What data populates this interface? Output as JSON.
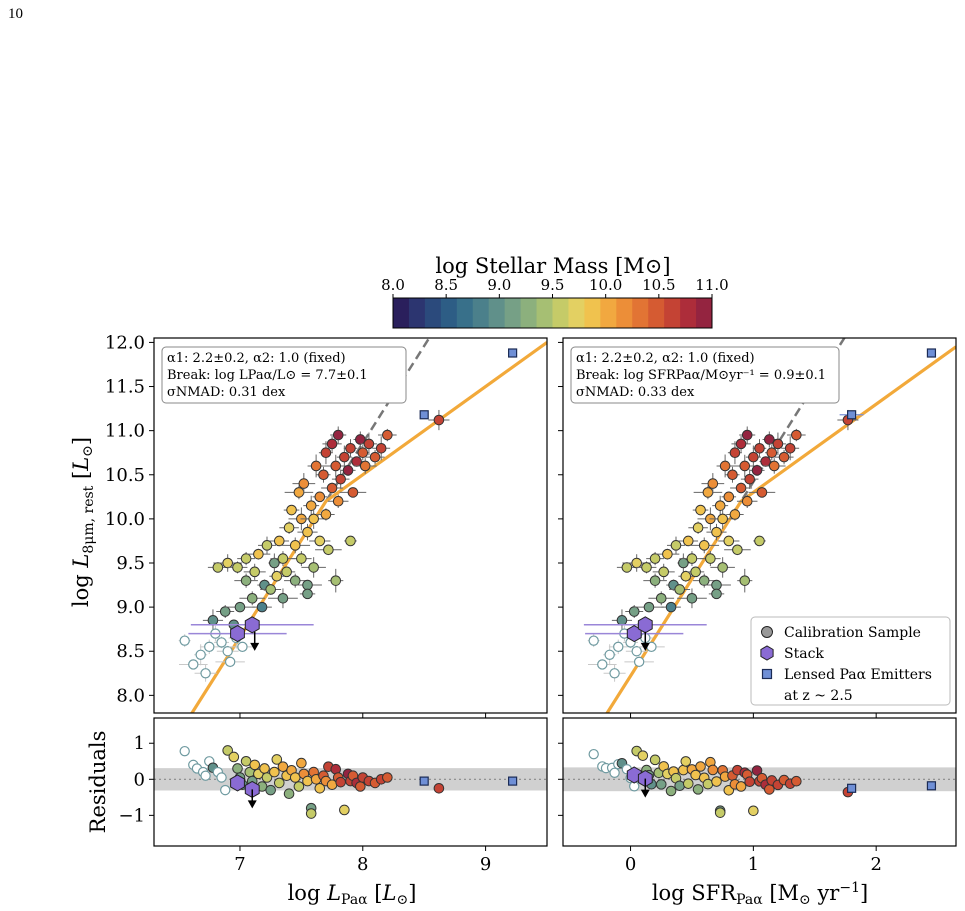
{
  "page_number": "10",
  "colorbar": {
    "label": "log Stellar Mass [M⊙]",
    "ticks": [
      "8.0",
      "8.5",
      "9.0",
      "9.5",
      "10.0",
      "10.5",
      "11.0"
    ],
    "range": [
      8.0,
      11.0
    ],
    "colors": [
      "#2a1f5c",
      "#2c3570",
      "#2b4a7c",
      "#2d5d85",
      "#38708a",
      "#4b808b",
      "#60908a",
      "#76a086",
      "#8cb07d",
      "#a6bf73",
      "#c5cb68",
      "#e3d062",
      "#f0c24e",
      "#f1a840",
      "#ec8e38",
      "#e27434",
      "#d55b32",
      "#c44334",
      "#ad2d3a",
      "#942440"
    ]
  },
  "chart_data": [
    {
      "type": "scatter",
      "panel": "top-left",
      "xlim": [
        6.3,
        9.5
      ],
      "ylim": [
        7.8,
        12.05
      ],
      "xticks": [],
      "yticks": [
        "8.0",
        "8.5",
        "9.0",
        "9.5",
        "10.0",
        "10.5",
        "11.0",
        "11.5",
        "12.0"
      ],
      "ylabel": "log L8μm, rest [L⊙]",
      "annotation": [
        "α1: 2.2±0.2, α2: 1.0 (fixed)",
        "Break: log LPaα/L⊙ = 7.7±0.1",
        "σNMAD: 0.31 dex"
      ],
      "fit": {
        "break": 7.7,
        "break_y": 10.2,
        "alpha1": 2.2,
        "alpha2": 1.0
      },
      "dashed": {
        "slope": 2.2,
        "intercept_at": [
          7.7,
          10.2
        ]
      },
      "stacks": [
        {
          "x": 6.98,
          "y": 8.7,
          "xerr": 0.4,
          "mass": 8.8
        },
        {
          "x": 7.1,
          "y": 8.8,
          "xerr": 0.5,
          "mass": 8.9
        }
      ],
      "upper_limit": {
        "x": 7.12,
        "y": 8.72
      },
      "lensed": [
        {
          "x": 8.5,
          "y": 11.18
        },
        {
          "x": 9.22,
          "y": 11.88
        }
      ]
    },
    {
      "type": "scatter",
      "panel": "top-right",
      "xlim": [
        -0.55,
        2.65
      ],
      "ylim": [
        7.8,
        12.05
      ],
      "xticks": [],
      "yticks": [],
      "annotation": [
        "α1: 2.2±0.2, α2: 1.0 (fixed)",
        "Break: log SFRPaα/M⊙yr⁻¹ = 0.9±0.1",
        "σNMAD: 0.33 dex"
      ],
      "fit": {
        "break": 0.9,
        "break_y": 10.2,
        "alpha1": 2.2,
        "alpha2": 1.0
      },
      "dashed": {
        "slope": 2.2,
        "intercept_at": [
          0.9,
          10.2
        ]
      },
      "stacks": [
        {
          "x": 0.03,
          "y": 8.7,
          "xerr": 0.4,
          "mass": 8.8
        },
        {
          "x": 0.12,
          "y": 8.8,
          "xerr": 0.5,
          "mass": 8.9
        }
      ],
      "upper_limit": {
        "x": 0.12,
        "y": 8.72
      },
      "lensed": [
        {
          "x": 1.8,
          "y": 11.18
        },
        {
          "x": 2.45,
          "y": 11.88
        }
      ],
      "legend": {
        "placement": "lower-right",
        "entries": [
          "Calibration Sample",
          "Stack",
          "Lensed Paα Emitters",
          "at z ~ 2.5"
        ]
      }
    },
    {
      "type": "scatter",
      "panel": "bottom-left",
      "xlim": [
        6.3,
        9.5
      ],
      "ylim": [
        -1.85,
        1.7
      ],
      "xticks": [
        "7",
        "8",
        "9"
      ],
      "yticks": [
        "−1",
        "0",
        "1"
      ],
      "xlabel": "log LPaα [L⊙]",
      "ylabel": "Residuals",
      "band": [
        -0.31,
        0.31
      ],
      "stacks": [
        {
          "x": 6.98,
          "y": -0.1,
          "mass": 8.8
        },
        {
          "x": 7.1,
          "y": -0.28,
          "mass": 8.9
        }
      ],
      "lensed": [
        {
          "x": 8.5,
          "y": -0.05
        },
        {
          "x": 9.22,
          "y": -0.05
        }
      ]
    },
    {
      "type": "scatter",
      "panel": "bottom-right",
      "xlim": [
        -0.55,
        2.65
      ],
      "ylim": [
        -1.85,
        1.7
      ],
      "xticks": [
        "0",
        "1",
        "2"
      ],
      "yticks": [],
      "xlabel": "log SFRPaα [M⊙ yr⁻¹]",
      "band": [
        -0.33,
        0.33
      ],
      "stacks": [
        {
          "x": 0.03,
          "y": 0.12,
          "mass": 8.8
        },
        {
          "x": 0.12,
          "y": 0.02,
          "mass": 8.9
        }
      ],
      "lensed": [
        {
          "x": 1.8,
          "y": -0.25
        },
        {
          "x": 2.45,
          "y": -0.18
        }
      ]
    }
  ],
  "calibration_points": [
    [
      6.55,
      8.62,
      8.2
    ],
    [
      6.62,
      8.35,
      8.3
    ],
    [
      6.68,
      8.46,
      8.5
    ],
    [
      6.72,
      8.25,
      8.4
    ],
    [
      6.75,
      8.55,
      8.7
    ],
    [
      6.78,
      8.85,
      9.0
    ],
    [
      6.8,
      8.7,
      8.6
    ],
    [
      6.85,
      8.6,
      8.6
    ],
    [
      6.88,
      8.95,
      9.2
    ],
    [
      6.9,
      8.5,
      8.5
    ],
    [
      6.92,
      8.38,
      8.4
    ],
    [
      6.95,
      8.8,
      8.9
    ],
    [
      6.97,
      8.65,
      8.6
    ],
    [
      7.0,
      9.0,
      9.1
    ],
    [
      7.02,
      8.55,
      8.6
    ],
    [
      6.82,
      9.45,
      9.6
    ],
    [
      6.9,
      9.5,
      9.7
    ],
    [
      6.98,
      9.45,
      9.6
    ],
    [
      7.05,
      9.3,
      9.3
    ],
    [
      7.05,
      9.55,
      9.5
    ],
    [
      7.1,
      9.1,
      9.3
    ],
    [
      7.12,
      9.4,
      9.6
    ],
    [
      7.15,
      9.6,
      9.8
    ],
    [
      7.18,
      9.0,
      8.8
    ],
    [
      7.2,
      9.25,
      9.0
    ],
    [
      7.22,
      9.7,
      9.5
    ],
    [
      7.25,
      9.2,
      9.4
    ],
    [
      7.28,
      9.5,
      9.2
    ],
    [
      7.3,
      9.35,
      9.7
    ],
    [
      7.32,
      9.75,
      9.9
    ],
    [
      7.35,
      9.1,
      9.2
    ],
    [
      7.35,
      9.55,
      9.5
    ],
    [
      7.38,
      9.4,
      9.6
    ],
    [
      7.4,
      9.9,
      9.7
    ],
    [
      7.42,
      10.1,
      9.9
    ],
    [
      7.45,
      9.3,
      9.3
    ],
    [
      7.45,
      9.7,
      9.8
    ],
    [
      7.48,
      10.3,
      10.0
    ],
    [
      7.5,
      9.55,
      9.5
    ],
    [
      7.5,
      10.0,
      10.1
    ],
    [
      7.52,
      10.4,
      10.2
    ],
    [
      7.55,
      9.25,
      9.1
    ],
    [
      7.55,
      9.85,
      9.8
    ],
    [
      7.58,
      10.15,
      10.0
    ],
    [
      7.6,
      9.45,
      9.4
    ],
    [
      7.6,
      10.0,
      9.9
    ],
    [
      7.62,
      10.6,
      10.3
    ],
    [
      7.65,
      9.75,
      9.7
    ],
    [
      7.65,
      10.25,
      10.2
    ],
    [
      7.68,
      10.5,
      10.4
    ],
    [
      7.7,
      10.05,
      10.1
    ],
    [
      7.7,
      10.75,
      10.6
    ],
    [
      7.72,
      9.65,
      9.6
    ],
    [
      7.75,
      10.35,
      10.5
    ],
    [
      7.75,
      10.85,
      10.8
    ],
    [
      7.78,
      10.6,
      10.4
    ],
    [
      7.8,
      10.2,
      10.2
    ],
    [
      7.8,
      10.95,
      10.9
    ],
    [
      7.82,
      10.45,
      10.6
    ],
    [
      7.85,
      10.7,
      10.7
    ],
    [
      7.88,
      10.55,
      10.9
    ],
    [
      7.9,
      10.8,
      10.6
    ],
    [
      7.92,
      10.3,
      10.4
    ],
    [
      7.95,
      10.65,
      10.8
    ],
    [
      7.98,
      10.9,
      10.9
    ],
    [
      8.0,
      10.75,
      10.5
    ],
    [
      8.02,
      10.6,
      10.3
    ],
    [
      8.05,
      10.85,
      10.7
    ],
    [
      8.1,
      10.7,
      10.4
    ],
    [
      8.15,
      10.8,
      10.6
    ],
    [
      8.2,
      10.95,
      10.5
    ],
    [
      8.62,
      11.12,
      10.7
    ],
    [
      7.78,
      9.3,
      9.4
    ],
    [
      7.9,
      9.75,
      9.6
    ],
    [
      7.55,
      9.15,
      9.2
    ]
  ],
  "residual_points": [
    [
      6.55,
      0.78,
      8.3
    ],
    [
      6.62,
      0.4,
      8.4
    ],
    [
      6.65,
      0.3,
      8.5
    ],
    [
      6.7,
      0.2,
      8.4
    ],
    [
      6.72,
      0.1,
      8.5
    ],
    [
      6.75,
      0.5,
      8.7
    ],
    [
      6.78,
      0.32,
      8.9
    ],
    [
      6.82,
      0.2,
      8.6
    ],
    [
      6.85,
      0.05,
      8.7
    ],
    [
      6.88,
      -0.3,
      8.5
    ],
    [
      6.9,
      0.8,
      9.6
    ],
    [
      6.95,
      0.62,
      9.7
    ],
    [
      6.98,
      0.3,
      9.3
    ],
    [
      7.0,
      0.05,
      9.2
    ],
    [
      7.02,
      -0.15,
      9.0
    ],
    [
      7.05,
      0.5,
      9.6
    ],
    [
      7.08,
      0.2,
      9.4
    ],
    [
      7.1,
      -0.05,
      9.1
    ],
    [
      7.12,
      0.4,
      9.8
    ],
    [
      7.15,
      0.15,
      9.7
    ],
    [
      7.18,
      -0.2,
      9.3
    ],
    [
      7.2,
      0.3,
      9.9
    ],
    [
      7.22,
      0.05,
      9.6
    ],
    [
      7.25,
      -0.3,
      9.2
    ],
    [
      7.28,
      0.2,
      9.8
    ],
    [
      7.3,
      0.55,
      9.7
    ],
    [
      7.32,
      -0.1,
      9.5
    ],
    [
      7.35,
      0.35,
      10.0
    ],
    [
      7.38,
      0.1,
      9.9
    ],
    [
      7.4,
      -0.4,
      9.3
    ],
    [
      7.42,
      0.25,
      10.1
    ],
    [
      7.45,
      0.05,
      9.8
    ],
    [
      7.48,
      -0.2,
      9.6
    ],
    [
      7.5,
      0.45,
      10.0
    ],
    [
      7.52,
      0.15,
      10.2
    ],
    [
      7.55,
      -0.05,
      9.9
    ],
    [
      7.58,
      -0.8,
      9.1
    ],
    [
      7.6,
      0.2,
      10.3
    ],
    [
      7.62,
      0.0,
      10.1
    ],
    [
      7.65,
      -0.25,
      9.8
    ],
    [
      7.68,
      0.1,
      10.4
    ],
    [
      7.7,
      -0.05,
      10.2
    ],
    [
      7.72,
      0.35,
      10.6
    ],
    [
      7.75,
      -0.15,
      10.0
    ],
    [
      7.78,
      0.28,
      10.8
    ],
    [
      7.8,
      0.05,
      10.5
    ],
    [
      7.82,
      -0.08,
      10.7
    ],
    [
      7.85,
      -0.85,
      9.7
    ],
    [
      7.88,
      0.15,
      10.9
    ],
    [
      7.9,
      -0.05,
      10.6
    ],
    [
      7.92,
      0.1,
      10.4
    ],
    [
      7.95,
      -0.1,
      10.8
    ],
    [
      7.98,
      -0.2,
      10.5
    ],
    [
      8.0,
      0.05,
      10.7
    ],
    [
      8.05,
      -0.05,
      10.6
    ],
    [
      8.1,
      -0.1,
      10.5
    ],
    [
      8.15,
      0.0,
      10.7
    ],
    [
      8.2,
      0.05,
      10.4
    ],
    [
      8.62,
      -0.25,
      10.6
    ],
    [
      7.58,
      -0.95,
      9.5
    ]
  ]
}
